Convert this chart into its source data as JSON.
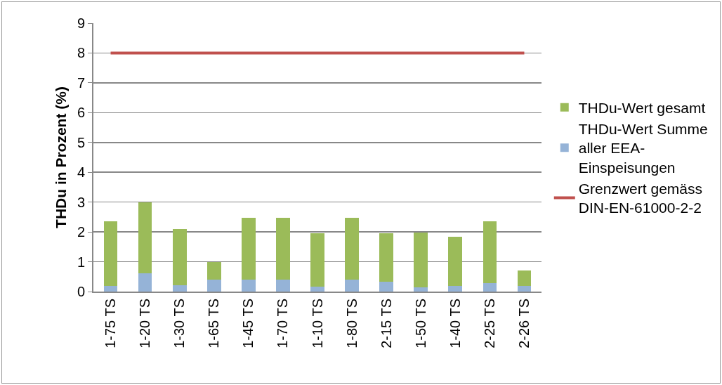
{
  "chart_data": {
    "type": "bar",
    "stacked": true,
    "ylabel": "THDu in Prozent (%)",
    "categories": [
      "1-75 TS",
      "1-20 TS",
      "1-30 TS",
      "1-65 TS",
      "1-45 TS",
      "1-70 TS",
      "1-10 TS",
      "1-80 TS",
      "2-15 TS",
      "1-50 TS",
      "1-40 TS",
      "2-25 TS",
      "2-26 TS"
    ],
    "series": [
      {
        "name": "THDu-Wert Summe aller EEA-Einspeisungen",
        "color": "#95b3d7",
        "values": [
          0.18,
          0.61,
          0.22,
          0.41,
          0.41,
          0.41,
          0.17,
          0.41,
          0.32,
          0.14,
          0.18,
          0.28,
          0.2
        ]
      },
      {
        "name": "THDu-Wert gesamt",
        "color": "#9bbb59",
        "values": [
          2.17,
          2.39,
          1.88,
          0.59,
          2.06,
          2.06,
          1.78,
          2.07,
          1.63,
          1.85,
          1.66,
          2.07,
          0.5
        ]
      },
      {
        "name": "Grenzwert gemäss DIN-EN-61000-2-2",
        "type": "line",
        "color": "#c0504d",
        "values": [
          8,
          8,
          8,
          8,
          8,
          8,
          8,
          8,
          8,
          8,
          8,
          8,
          8
        ]
      }
    ],
    "ylim": [
      0,
      9
    ],
    "yticks": [
      0,
      1,
      2,
      3,
      4,
      5,
      6,
      7,
      8,
      9
    ],
    "grid": "y",
    "legend": "right",
    "marker": "none",
    "line_style": "solid"
  }
}
